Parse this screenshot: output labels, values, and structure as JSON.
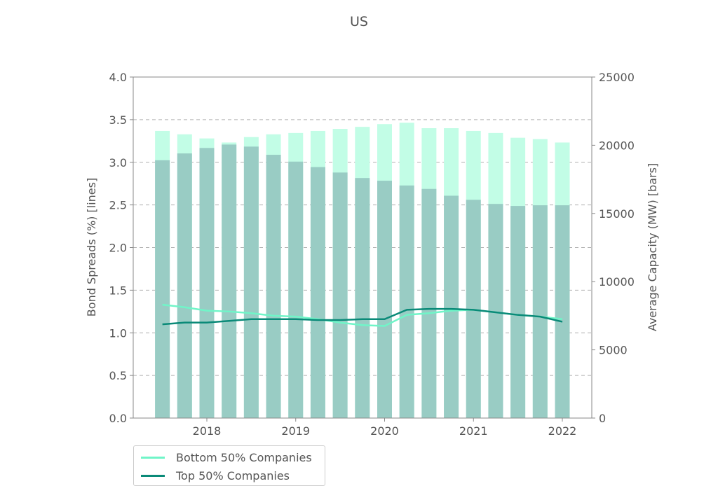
{
  "chart_data": {
    "type": "bar",
    "title": "US",
    "ylabel_left": "Bond Spreads (%) [lines]",
    "ylabel_right": "Average Capacity (MW) [bars]",
    "ylim_left": [
      0,
      4.0
    ],
    "ylim_right": [
      0,
      25000
    ],
    "yticks_left": [
      "0.0",
      "0.5",
      "1.0",
      "1.5",
      "2.0",
      "2.5",
      "3.0",
      "3.5",
      "4.0"
    ],
    "yticks_right": [
      "0",
      "5000",
      "10000",
      "15000",
      "20000",
      "25000"
    ],
    "xticks": [
      "2018",
      "2019",
      "2020",
      "2021",
      "2022"
    ],
    "grid": "horizontal dashed",
    "legend_position": "below-left",
    "colors": {
      "bottom": "#70f5c8",
      "top": "#0a8a78",
      "bar_light": "#c2fde6",
      "bar_dark": "#99ccc4"
    },
    "x": [
      "2017-07",
      "2017-10",
      "2018-01",
      "2018-04",
      "2018-07",
      "2018-10",
      "2019-01",
      "2019-04",
      "2019-07",
      "2019-10",
      "2020-01",
      "2020-04",
      "2020-07",
      "2020-10",
      "2021-01",
      "2021-04",
      "2021-07",
      "2021-10",
      "2022-01"
    ],
    "bar_series": [
      {
        "values": [
          21050,
          20800,
          20500,
          20200,
          20600,
          20800,
          20900,
          21050,
          21200,
          21350,
          21550,
          21650,
          21250,
          21250,
          21050,
          20900,
          20550,
          20450,
          20200
        ]
      },
      {
        "values": [
          18900,
          19400,
          19800,
          20050,
          19900,
          19300,
          18800,
          18400,
          18000,
          17600,
          17400,
          17050,
          16800,
          16300,
          16000,
          15700,
          15550,
          15600,
          15600
        ]
      }
    ],
    "series": [
      {
        "name": "Bottom 50% Companies",
        "values": [
          1.33,
          1.3,
          1.26,
          1.25,
          1.23,
          1.2,
          1.19,
          1.16,
          1.12,
          1.09,
          1.08,
          1.21,
          1.23,
          1.26,
          1.27,
          1.24,
          1.21,
          1.19,
          1.16
        ]
      },
      {
        "name": "Top 50% Companies",
        "values": [
          1.1,
          1.12,
          1.12,
          1.14,
          1.16,
          1.16,
          1.16,
          1.15,
          1.15,
          1.16,
          1.16,
          1.27,
          1.28,
          1.28,
          1.27,
          1.24,
          1.21,
          1.19,
          1.13
        ]
      }
    ]
  }
}
